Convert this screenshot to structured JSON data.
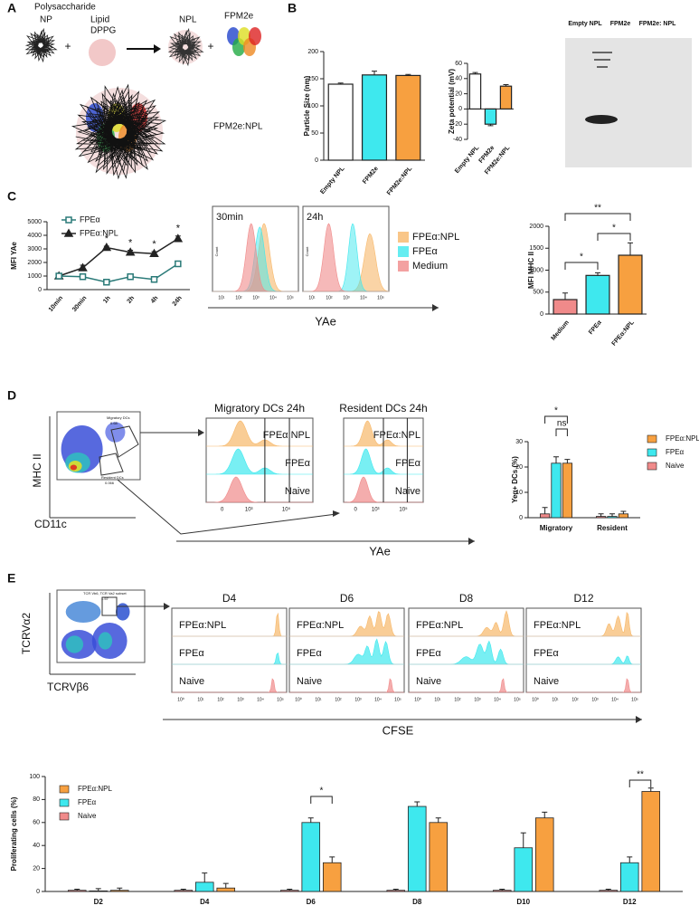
{
  "figure": {
    "panels": [
      "A",
      "B",
      "C",
      "D",
      "E"
    ],
    "a": {
      "polysaccharide": "Polysaccharide",
      "np": "NP",
      "plus": "+",
      "lipid": "Lipid",
      "dppg": "DPPG",
      "npl": "NPL",
      "fpm2e": "FPM2e",
      "complex": "FPM2e:NPL"
    },
    "gel": {
      "lanes": [
        "Empty NPL",
        "FPM2e",
        "FPM2e: NPL"
      ]
    },
    "c": {
      "times": [
        "30min",
        "24h"
      ],
      "count": "Count",
      "legend": [
        "FPEα:NPL",
        "FPEα",
        "Medium"
      ],
      "axis": "YAe",
      "ticks": [
        "10¹",
        "10²",
        "10³",
        "10⁴",
        "10⁵"
      ]
    },
    "d": {
      "gates": [
        "Migratory DCs",
        "0.68",
        "Resident DCs",
        "0.066"
      ],
      "y_axis": "MHC II",
      "x_axis": "CD11c",
      "titles": [
        "Migratory DCs 24h",
        "Resident DCs 24h"
      ],
      "rows": [
        "FPEα:NPL",
        "FPEα",
        "Naive"
      ],
      "ticks": [
        "0",
        "10³",
        "10⁵"
      ],
      "axis": "YAe"
    },
    "e": {
      "gates": [
        "TCR Vb6, TCR Va2 subset",
        "1.57"
      ],
      "y_axis": "TCRVα2",
      "x_axis": "TCRVβ6",
      "days": [
        "D4",
        "D6",
        "D8",
        "D12"
      ],
      "rows": [
        "FPEα:NPL",
        "FPEα",
        "Naive"
      ],
      "ticks": [
        "10⁰",
        "10¹",
        "10²",
        "10³",
        "10⁴",
        "10⁵"
      ],
      "axis": "CFSE"
    }
  },
  "chart_data": [
    {
      "type": "bar",
      "ylabel": "Particle Size (nm)",
      "categories": [
        "Empty NPL",
        "FPM2e",
        "FPM2e:NPL"
      ],
      "values": [
        140,
        157,
        156
      ],
      "errors": [
        2,
        7,
        2
      ],
      "colors": [
        "#ffffff",
        "#3ee8ee",
        "#f7a040"
      ],
      "ylim": [
        0,
        200
      ],
      "yticks": [
        0,
        50,
        100,
        150,
        200
      ]
    },
    {
      "type": "bar",
      "ylabel": "Zeta potential (mV)",
      "categories": [
        "Empty NPL",
        "FPM2e",
        "FPM2e:NPL"
      ],
      "values": [
        46,
        -20,
        30
      ],
      "errors": [
        2,
        2,
        2
      ],
      "colors": [
        "#ffffff",
        "#3ee8ee",
        "#f7a040"
      ],
      "ylim": [
        -40,
        60
      ],
      "yticks": [
        -40,
        -20,
        0,
        20,
        40,
        60
      ]
    },
    {
      "type": "line",
      "ylabel": "MFI YAe",
      "categories": [
        "10min",
        "30min",
        "1h",
        "2h",
        "4h",
        "24h"
      ],
      "series": [
        {
          "name": "FPEα:NPL",
          "color": "#222222",
          "marker": "triangle",
          "values": [
            1000,
            1600,
            3100,
            2750,
            2650,
            3750
          ],
          "errors": [
            150,
            200,
            100,
            150,
            150,
            200
          ]
        },
        {
          "name": "FPEα",
          "color": "#2a7a78",
          "marker": "square",
          "values": [
            1000,
            950,
            550,
            950,
            750,
            1900
          ],
          "errors": [
            150,
            100,
            100,
            150,
            100,
            150
          ]
        }
      ],
      "marks": [
        null,
        null,
        "*",
        "*",
        "*",
        "*"
      ],
      "ylim": [
        0,
        5000
      ],
      "yticks": [
        0,
        1000,
        2000,
        3000,
        4000,
        5000
      ]
    },
    {
      "type": "bar",
      "ylabel": "MFI MHC II",
      "categories": [
        "Medium",
        "FPEα",
        "FPEα:NPL"
      ],
      "values": [
        330,
        880,
        1340
      ],
      "errors": [
        150,
        60,
        280
      ],
      "colors": [
        "#f08a8a",
        "#3ee8ee",
        "#f7a040"
      ],
      "annotations": [
        "*",
        "*",
        "**"
      ],
      "ylim": [
        0,
        2000
      ],
      "yticks": [
        0,
        500,
        1000,
        1500,
        2000
      ]
    },
    {
      "type": "grouped-bar",
      "ylabel": "Yeα+ DCs (%)",
      "categories": [
        "Migratory",
        "Resident"
      ],
      "series": [
        {
          "name": "Naive",
          "color": "#f08a8a",
          "values": [
            1.5,
            0.5
          ],
          "errors": [
            2.5,
            1
          ]
        },
        {
          "name": "FPEα",
          "color": "#3ee8ee",
          "values": [
            21.5,
            0.5
          ],
          "errors": [
            2.5,
            1
          ]
        },
        {
          "name": "FPEα:NPL",
          "color": "#f7a040",
          "values": [
            21.5,
            1.5
          ],
          "errors": [
            1.5,
            1
          ]
        }
      ],
      "annotations": [
        "*",
        "ns"
      ],
      "ylim": [
        0,
        30
      ],
      "yticks": [
        0,
        10,
        20,
        30
      ]
    },
    {
      "type": "grouped-bar",
      "ylabel": "Proliferating cells (%)",
      "categories": [
        "D2",
        "D4",
        "D6",
        "D8",
        "D10",
        "D12"
      ],
      "series": [
        {
          "name": "Naive",
          "color": "#f08a8a",
          "values": [
            1,
            1,
            1,
            1,
            1,
            1
          ],
          "errors": [
            1,
            1,
            1,
            1,
            1,
            1
          ]
        },
        {
          "name": "FPEα",
          "color": "#3ee8ee",
          "values": [
            0.5,
            8,
            60,
            74,
            38,
            25
          ],
          "errors": [
            2,
            8,
            4,
            4,
            13,
            5
          ]
        },
        {
          "name": "FPEα:NPL",
          "color": "#f7a040",
          "values": [
            1,
            3,
            25,
            60,
            64,
            87
          ],
          "errors": [
            2,
            4,
            5,
            4,
            5,
            3
          ]
        }
      ],
      "annotations": [
        "*",
        "**"
      ],
      "ylim": [
        0,
        100
      ],
      "yticks": [
        0,
        20,
        40,
        60,
        80,
        100
      ]
    }
  ]
}
